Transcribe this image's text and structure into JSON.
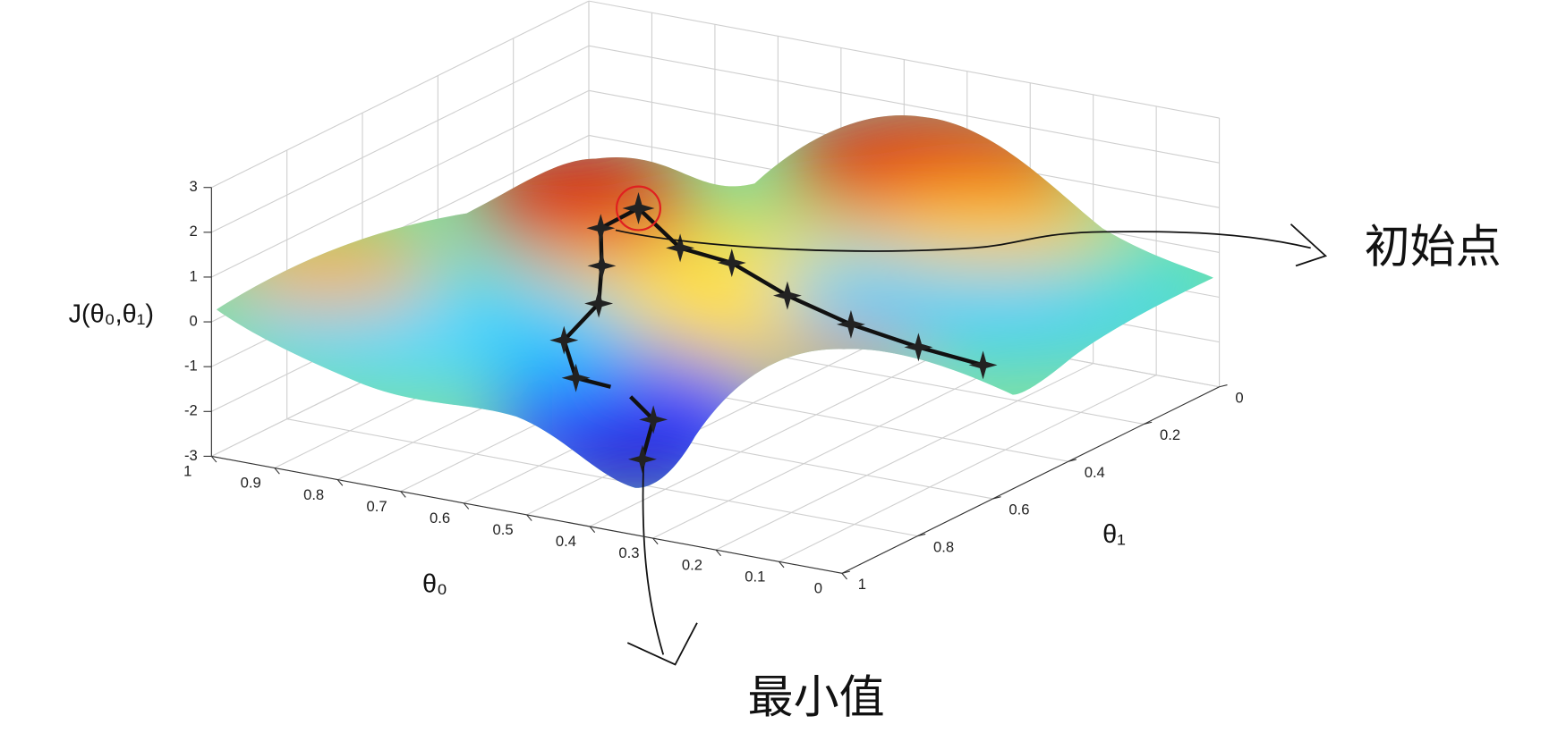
{
  "chart_data": {
    "type": "surface3d",
    "zlabel": "J(θ₀,θ₁)",
    "xlabel": "θ₀",
    "ylabel": "θ₁",
    "xlim": [
      0,
      1
    ],
    "xticks": [
      0,
      0.1,
      0.2,
      0.3,
      0.4,
      0.5,
      0.6,
      0.7,
      0.8,
      0.9,
      1
    ],
    "ylim": [
      0,
      1
    ],
    "yticks": [
      0,
      0.2,
      0.4,
      0.6,
      0.8,
      1
    ],
    "zlim": [
      -3,
      3
    ],
    "zticks": [
      -3,
      -2,
      -1,
      0,
      1,
      2,
      3
    ],
    "grid": true,
    "annotations": [
      "初始点",
      "最小值"
    ]
  }
}
